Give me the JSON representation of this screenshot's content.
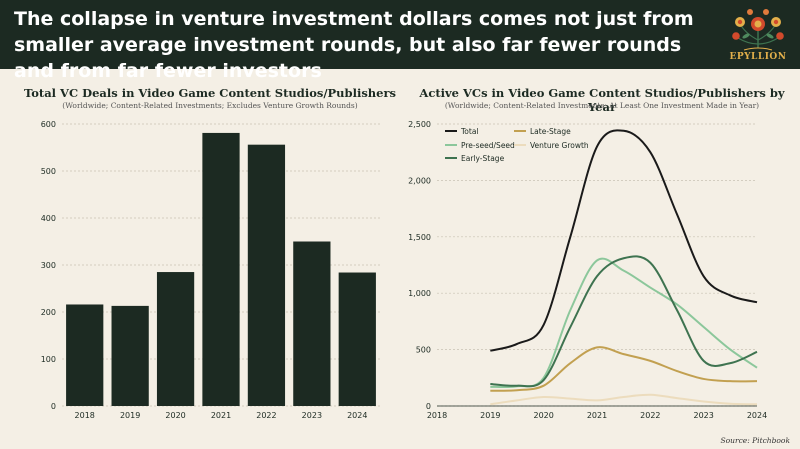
{
  "header": {
    "headline": "The collapse in venture investment dollars comes not just from smaller average investment rounds, but also far fewer rounds and from far fewer investors",
    "logo_text": "EPYLLION"
  },
  "source": "Source: Pitchbook",
  "chart_data": [
    {
      "type": "bar",
      "title": "Total VC Deals in Video Game Content Studios/Publishers",
      "subtitle": "(Worldwide; Content-Related Investments; Excludes Venture Growth Rounds)",
      "categories": [
        "2018",
        "2019",
        "2020",
        "2021",
        "2022",
        "2023",
        "2024"
      ],
      "values": [
        216,
        213,
        285,
        581,
        556,
        350,
        284
      ],
      "ylim": [
        0,
        600
      ],
      "yticks": [
        0,
        100,
        200,
        300,
        400,
        500,
        600
      ],
      "grid": true,
      "bar_color": "#1c2a22"
    },
    {
      "type": "line",
      "title": "Active VCs in Video Game Content Studios/Publishers by Year",
      "subtitle": "(Worldwide; Content-Related Investments; At Least One Investment Made in Year)",
      "xlim": [
        2018,
        2024
      ],
      "xticks": [
        2018,
        2019,
        2020,
        2021,
        2022,
        2023,
        2024
      ],
      "ylim": [
        0,
        2500
      ],
      "yticks": [
        0,
        500,
        1000,
        1500,
        2000,
        2500
      ],
      "ytick_labels": [
        "0",
        "500",
        "1,000",
        "1,500",
        "2,000",
        "2,500"
      ],
      "grid": true,
      "legend_placement": "top-left",
      "series": [
        {
          "name": "Total",
          "color": "#1a1a1a",
          "x": [
            2019,
            2019.5,
            2020,
            2020.5,
            2021,
            2021.5,
            2022,
            2022.5,
            2023,
            2023.5,
            2024
          ],
          "values": [
            490,
            550,
            720,
            1500,
            2300,
            2440,
            2250,
            1700,
            1150,
            980,
            920
          ]
        },
        {
          "name": "Pre-seed/Seed",
          "color": "#8cc79b",
          "x": [
            2019,
            2019.5,
            2020,
            2020.5,
            2021,
            2021.5,
            2022,
            2022.5,
            2023,
            2023.5,
            2024
          ],
          "values": [
            170,
            175,
            250,
            850,
            1290,
            1200,
            1050,
            900,
            700,
            500,
            340
          ]
        },
        {
          "name": "Early-Stage",
          "color": "#3e7350",
          "x": [
            2019,
            2019.5,
            2020,
            2020.5,
            2021,
            2021.5,
            2022,
            2022.5,
            2023,
            2023.5,
            2024
          ],
          "values": [
            195,
            180,
            230,
            700,
            1150,
            1310,
            1270,
            850,
            400,
            380,
            480
          ]
        },
        {
          "name": "Late-Stage",
          "color": "#c2a050",
          "x": [
            2019,
            2019.5,
            2020,
            2020.5,
            2021,
            2021.5,
            2022,
            2022.5,
            2023,
            2023.5,
            2024
          ],
          "values": [
            135,
            140,
            180,
            380,
            520,
            460,
            400,
            310,
            240,
            220,
            220
          ]
        },
        {
          "name": "Venture Growth",
          "color": "#ecdcbd",
          "x": [
            2019,
            2019.5,
            2020,
            2020.5,
            2021,
            2021.5,
            2022,
            2022.5,
            2023,
            2023.5,
            2024
          ],
          "values": [
            15,
            50,
            80,
            65,
            50,
            80,
            100,
            70,
            40,
            20,
            15
          ]
        }
      ]
    }
  ]
}
